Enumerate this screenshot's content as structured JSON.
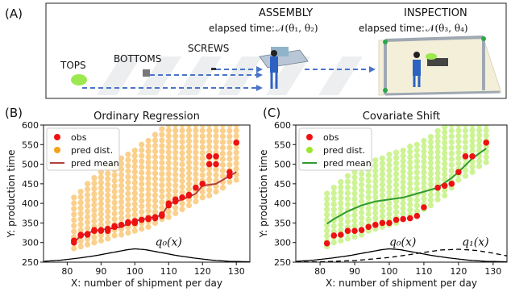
{
  "figure": {
    "panel_a_label": "(A)",
    "panel_b_label": "(B)",
    "panel_c_label": "(C)",
    "scene": {
      "tops": "TOPS",
      "bottoms": "BOTTOMS",
      "screws": "SCREWS",
      "assembly": "ASSEMBLY",
      "assembly_time_label": "elapsed time:",
      "assembly_time_formula": "𝒩(θ₁, θ₂)",
      "inspection": "INSPECTION",
      "inspection_time_label": "elapsed time:",
      "inspection_time_formula": "𝒩(θ₃, θ₄)"
    }
  },
  "colors": {
    "obs": "#ee1111",
    "pred_dist_B": "#f5a21a",
    "pred_mean_B": "#b0413e",
    "pred_dist_C": "#9be82a",
    "pred_mean_C": "#2f9a2f",
    "density": "#000000"
  },
  "chart_data": [
    {
      "type": "scatter",
      "title": "Ordinary Regression",
      "xlabel": "X: number of shipment per day",
      "ylabel": "Y: production time",
      "xlim": [
        73,
        134
      ],
      "ylim": [
        250,
        600
      ],
      "xticks": [
        80,
        90,
        100,
        110,
        120,
        130
      ],
      "yticks": [
        250,
        300,
        350,
        400,
        450,
        500,
        550,
        600
      ],
      "legend_position": "top-left",
      "legend": [
        "obs",
        "pred dist.",
        "pred mean"
      ],
      "density_label": "q₀(x)",
      "obs": {
        "x": [
          82,
          82,
          84,
          84,
          86,
          86,
          88,
          88,
          90,
          90,
          92,
          92,
          94,
          94,
          96,
          98,
          98,
          100,
          100,
          102,
          104,
          104,
          106,
          106,
          108,
          108,
          110,
          110,
          112,
          112,
          114,
          116,
          116,
          118,
          120,
          122,
          122,
          124,
          124,
          128,
          128,
          130
        ],
        "y": [
          300,
          305,
          318,
          320,
          320,
          322,
          330,
          332,
          330,
          332,
          330,
          335,
          340,
          342,
          345,
          350,
          352,
          350,
          355,
          358,
          360,
          362,
          362,
          365,
          368,
          372,
          395,
          400,
          405,
          410,
          415,
          420,
          422,
          440,
          450,
          500,
          520,
          500,
          520,
          470,
          480,
          555
        ]
      },
      "pred_mean": {
        "x": [
          82,
          84,
          88,
          92,
          96,
          100,
          104,
          108,
          110,
          114,
          118,
          120,
          124,
          128,
          130
        ],
        "y": [
          300,
          318,
          330,
          335,
          340,
          355,
          362,
          370,
          398,
          410,
          425,
          445,
          450,
          470,
          480
        ]
      },
      "pred_dist": {
        "x": [
          82,
          84,
          86,
          88,
          90,
          92,
          94,
          96,
          98,
          100,
          102,
          104,
          106,
          108,
          110,
          112,
          114,
          116,
          118,
          120,
          122,
          124,
          126,
          128,
          130
        ],
        "y_low": [
          285,
          290,
          295,
          300,
          305,
          310,
          318,
          320,
          325,
          330,
          335,
          340,
          350,
          360,
          365,
          375,
          385,
          395,
          405,
          415,
          420,
          430,
          440,
          455,
          460
        ],
        "y_high": [
          415,
          430,
          450,
          465,
          480,
          490,
          500,
          515,
          525,
          535,
          550,
          560,
          575,
          590,
          600,
          600,
          600,
          600,
          600,
          600,
          600,
          600,
          600,
          600,
          600
        ]
      },
      "density": {
        "x": [
          73,
          78,
          83,
          88,
          93,
          98,
          100,
          103,
          108,
          113,
          118,
          123,
          128,
          134
        ],
        "y": [
          252,
          255,
          260,
          266,
          274,
          282,
          284,
          282,
          274,
          266,
          260,
          255,
          252,
          251
        ]
      }
    },
    {
      "type": "scatter",
      "title": "Covariate Shift",
      "xlabel": "X: number of shipment per day",
      "ylabel": "Y: production time",
      "xlim": [
        73,
        134
      ],
      "ylim": [
        250,
        600
      ],
      "xticks": [
        80,
        90,
        100,
        110,
        120,
        130
      ],
      "yticks": [
        250,
        300,
        350,
        400,
        450,
        500,
        550,
        600
      ],
      "legend_position": "top-left",
      "legend": [
        "obs",
        "pred dist.",
        "pred mean"
      ],
      "density_labels": [
        "q₀(x)",
        "q₁(x)"
      ],
      "obs": {
        "x": [
          82,
          84,
          86,
          88,
          90,
          92,
          94,
          96,
          98,
          100,
          102,
          104,
          106,
          108,
          110,
          114,
          116,
          118,
          120,
          122,
          124,
          128
        ],
        "y": [
          298,
          318,
          320,
          330,
          330,
          332,
          340,
          345,
          350,
          350,
          358,
          360,
          362,
          368,
          390,
          440,
          445,
          450,
          480,
          520,
          520,
          555
        ]
      },
      "pred_mean": {
        "x": [
          82,
          84,
          88,
          92,
          96,
          100,
          104,
          108,
          110,
          114,
          118,
          120,
          124,
          128
        ],
        "y": [
          348,
          360,
          380,
          395,
          405,
          410,
          415,
          425,
          430,
          440,
          465,
          480,
          515,
          540
        ]
      },
      "pred_dist": {
        "x": [
          82,
          84,
          86,
          88,
          90,
          92,
          94,
          96,
          98,
          100,
          102,
          104,
          106,
          108,
          110,
          112,
          114,
          116,
          118,
          120,
          122,
          124,
          126,
          128
        ],
        "y_low": [
          290,
          300,
          305,
          310,
          315,
          320,
          330,
          335,
          340,
          345,
          350,
          360,
          370,
          380,
          385,
          395,
          410,
          420,
          440,
          460,
          470,
          480,
          495,
          505
        ],
        "y_high": [
          425,
          440,
          455,
          470,
          480,
          490,
          500,
          510,
          515,
          525,
          530,
          535,
          545,
          550,
          560,
          570,
          585,
          595,
          600,
          600,
          600,
          600,
          600,
          600
        ]
      },
      "density": {
        "x": [
          73,
          78,
          83,
          88,
          93,
          98,
          100,
          103,
          108,
          113,
          118,
          123,
          128,
          134
        ],
        "y": [
          252,
          255,
          260,
          266,
          274,
          282,
          284,
          282,
          274,
          266,
          260,
          255,
          252,
          251
        ]
      },
      "density_shift": {
        "x": [
          73,
          80,
          90,
          100,
          105,
          110,
          115,
          120,
          125,
          130,
          134
        ],
        "y": [
          250,
          251,
          254,
          262,
          268,
          275,
          281,
          283,
          280,
          273,
          266
        ]
      }
    }
  ]
}
